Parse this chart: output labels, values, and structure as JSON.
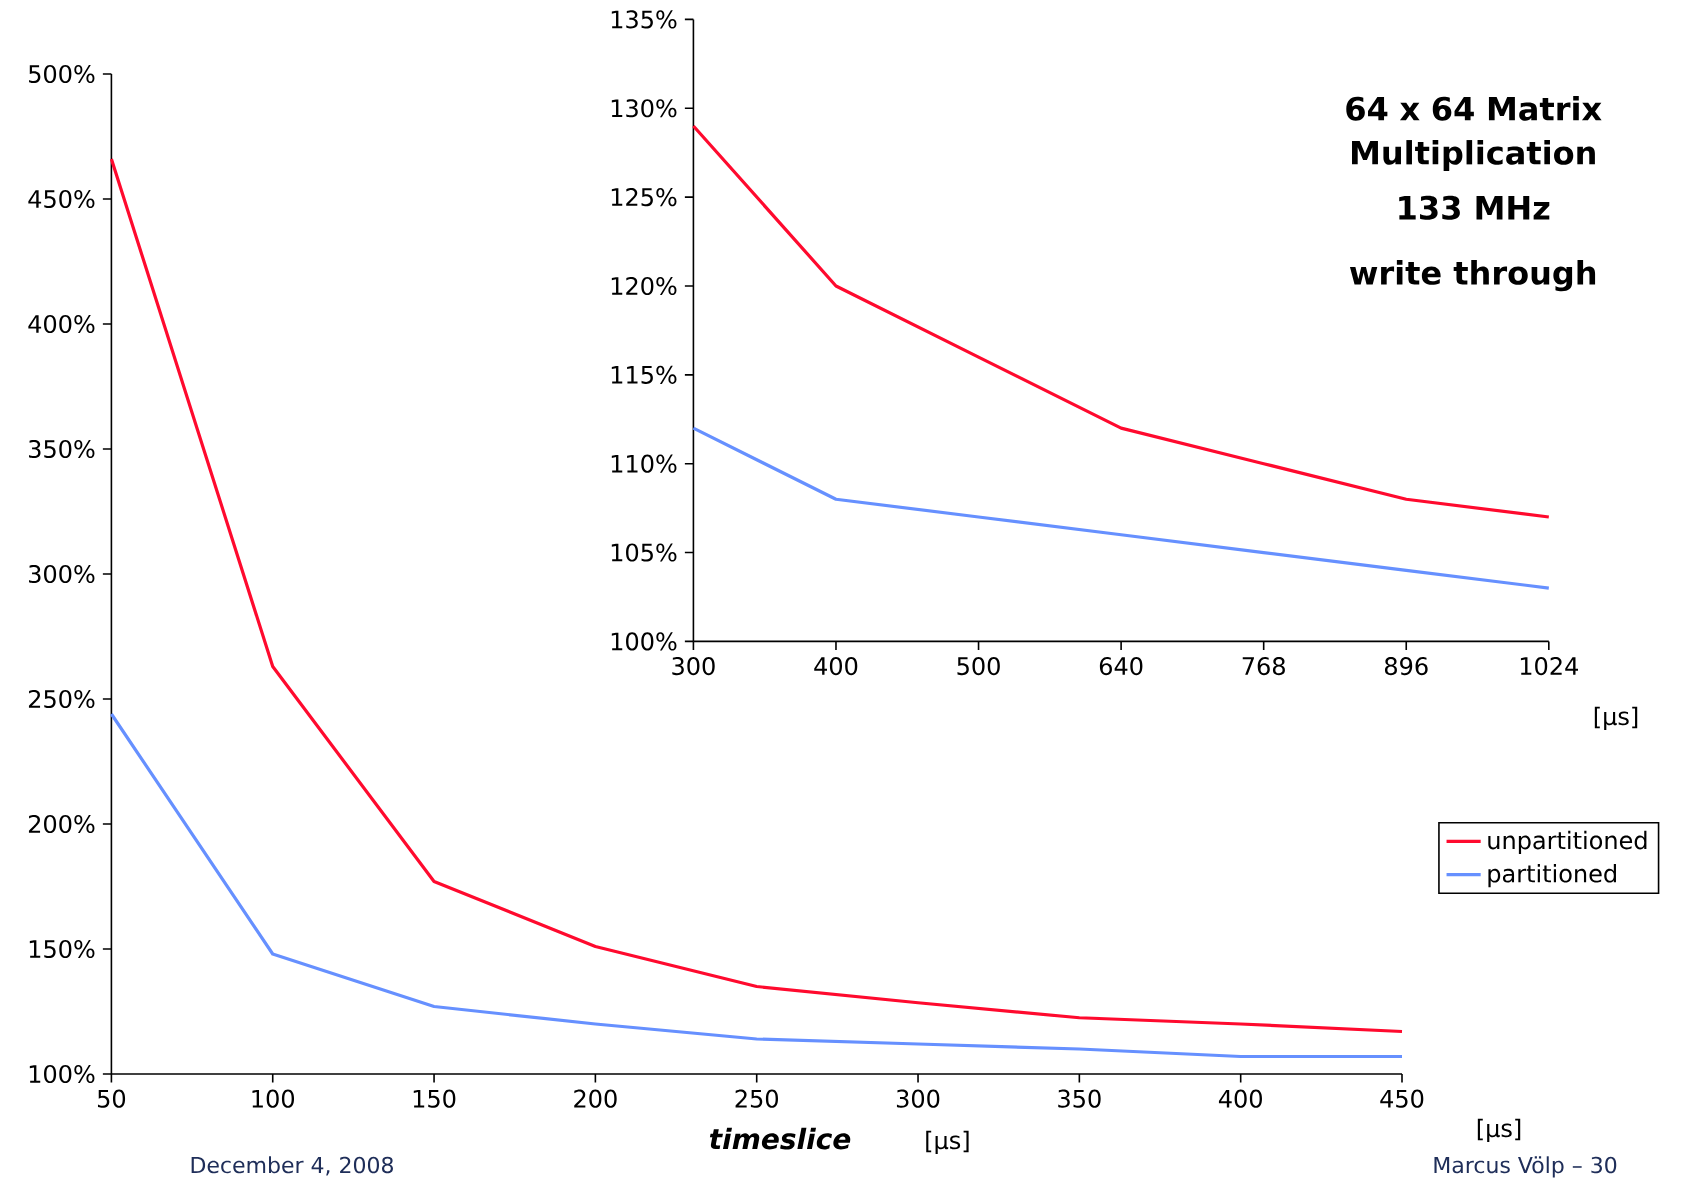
{
  "chart_data": [
    {
      "type": "line",
      "xlabel": "timeslice",
      "annotations": [
        "[µs]",
        "[µs]",
        "December 4, 2008",
        "Marcus Völp – 30"
      ],
      "x": [
        50,
        100,
        150,
        200,
        250,
        300,
        350,
        400,
        450
      ],
      "series": [
        {
          "name": "unpartitioned",
          "color": "#ff0a2e",
          "values": [
            466,
            263,
            177,
            151,
            135,
            128.5,
            122.5,
            120,
            117
          ]
        },
        {
          "name": "partitioned",
          "color": "#6690ff",
          "values": [
            244,
            148,
            127,
            120,
            114,
            112,
            110,
            107,
            107
          ]
        }
      ],
      "xlim": [
        50,
        450
      ],
      "xticks": [
        50,
        100,
        150,
        200,
        250,
        300,
        350,
        400,
        450
      ],
      "ylim": [
        100,
        500
      ],
      "yticks": [
        {
          "value": 100,
          "label": "100%"
        },
        {
          "value": 150,
          "label": "150%"
        },
        {
          "value": 200,
          "label": "200%"
        },
        {
          "value": 250,
          "label": "250%"
        },
        {
          "value": 300,
          "label": "300%"
        },
        {
          "value": 350,
          "label": "350%"
        },
        {
          "value": 400,
          "label": "400%"
        },
        {
          "value": 450,
          "label": "450%"
        },
        {
          "value": 500,
          "label": "500%"
        }
      ],
      "legend": "right",
      "grid": false,
      "marker": "none",
      "line_style": "solid"
    },
    {
      "type": "line",
      "title": "64 x 64 Matrix Multiplication",
      "subtitle": "133 MHz",
      "xlabel": "[µs]",
      "annotations": [
        "write through"
      ],
      "categories": [
        "300",
        "400",
        "500",
        "640",
        "768",
        "896",
        "1024"
      ],
      "series": [
        {
          "color": "#ff0a2e",
          "values": [
            129,
            120,
            116,
            112,
            110,
            108,
            107
          ]
        },
        {
          "color": "#6690ff",
          "values": [
            112,
            108,
            107,
            106,
            105,
            104,
            103
          ]
        }
      ],
      "ylim": [
        100,
        135
      ],
      "yticks": [
        {
          "value": 100,
          "label": "100%"
        },
        {
          "value": 105,
          "label": "105%"
        },
        {
          "value": 110,
          "label": "110%"
        },
        {
          "value": 115,
          "label": "115%"
        },
        {
          "value": 120,
          "label": "120%"
        },
        {
          "value": 125,
          "label": "125%"
        },
        {
          "value": 130,
          "label": "130%"
        },
        {
          "value": 135,
          "label": "135%"
        }
      ],
      "grid": false,
      "marker": "none",
      "line_style": "solid"
    }
  ]
}
